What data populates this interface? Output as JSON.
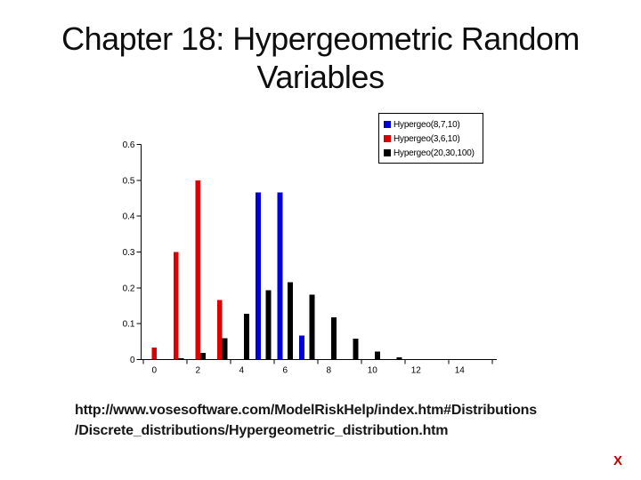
{
  "title": {
    "line1": "Chapter 18: Hypergeometric Random",
    "line2": "Variables"
  },
  "footer": {
    "url_line1": "http://www.vosesoftware.com/ModelRiskHelp/index.htm#Distributions",
    "url_line2": "/Discrete_distributions/Hypergeometric_distribution.htm",
    "close_label": "X"
  },
  "chart_data": {
    "type": "bar",
    "title": "",
    "xlabel": "",
    "ylabel": "",
    "categories": [
      0,
      1,
      2,
      3,
      4,
      5,
      6,
      7,
      8,
      9,
      10,
      11,
      12,
      13,
      14,
      15
    ],
    "xtick_labels": [
      "0",
      "2",
      "4",
      "6",
      "8",
      "10",
      "12",
      "14"
    ],
    "xtick_positions": [
      0,
      2,
      4,
      6,
      8,
      10,
      12,
      14
    ],
    "ytick_labels": [
      "0",
      "0.1",
      "0.2",
      "0.3",
      "0.4",
      "0.5",
      "0.6"
    ],
    "ylim": [
      0,
      0.6
    ],
    "grid": "off",
    "legend_position": "top-right",
    "series": [
      {
        "name": "Hypergeo(8,7,10)",
        "color": "#0000dd",
        "values": [
          0,
          0,
          0,
          0,
          0,
          0.4667,
          0.4667,
          0.0667,
          0,
          0,
          0,
          0,
          0,
          0,
          0,
          0
        ]
      },
      {
        "name": "Hypergeo(3,6,10)",
        "color": "#dd0000",
        "values": [
          0.0333,
          0.3,
          0.5,
          0.1667,
          0,
          0,
          0,
          0,
          0,
          0,
          0,
          0,
          0,
          0,
          0,
          0
        ]
      },
      {
        "name": "Hypergeo(20,30,100)",
        "color": "#000000",
        "values": [
          0.0003,
          0.0036,
          0.019,
          0.0601,
          0.1277,
          0.1931,
          0.2155,
          0.1815,
          0.1175,
          0.0584,
          0.0225,
          0.0067,
          0.0015,
          0.0003,
          0,
          0
        ]
      }
    ]
  }
}
